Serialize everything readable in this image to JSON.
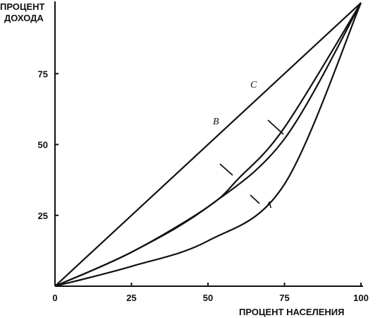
{
  "chart_data": {
    "type": "line",
    "ylabel_line1": "ПРОЦЕНТ",
    "ylabel_line2": "ДОХОДА",
    "xlabel": "ПРОЦЕНТ НАСЕЛЕНИЯ",
    "xlim": [
      0,
      100
    ],
    "ylim": [
      0,
      100
    ],
    "xticks": [
      "0",
      "25",
      "50",
      "75",
      "100"
    ],
    "yticks": [
      "25",
      "50",
      "75"
    ],
    "grid": false,
    "series": [
      {
        "name": "C",
        "x": [
          0,
          100
        ],
        "y": [
          0,
          100
        ]
      },
      {
        "name": "B",
        "x": [
          0,
          25,
          50,
          60,
          75,
          100
        ],
        "y": [
          0,
          12,
          28,
          38,
          56,
          100
        ]
      },
      {
        "name": "",
        "x": [
          0,
          25,
          50,
          75,
          100
        ],
        "y": [
          0,
          12,
          28,
          52,
          100
        ]
      },
      {
        "name": "A",
        "x": [
          0,
          25,
          50,
          75,
          100
        ],
        "y": [
          0,
          7,
          16,
          36,
          100
        ]
      }
    ]
  }
}
